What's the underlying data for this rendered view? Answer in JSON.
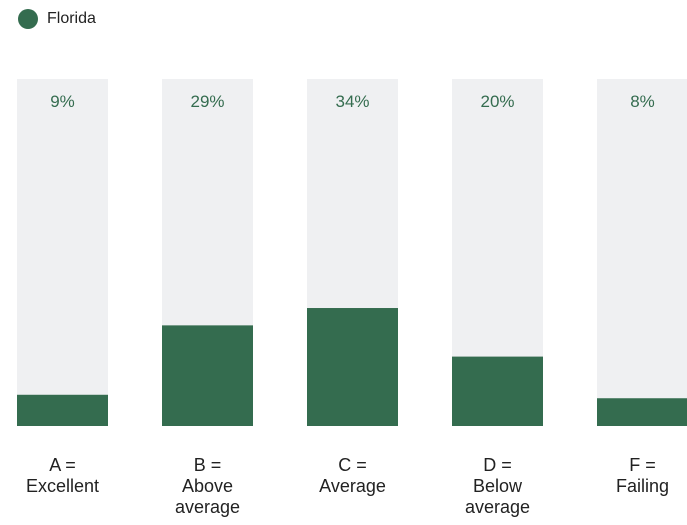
{
  "chart_data": {
    "type": "bar",
    "legend": {
      "position": "top-left",
      "entries": [
        {
          "name": "Florida",
          "color": "#346c4f"
        }
      ]
    },
    "categories": [
      [
        "A =",
        "Excellent"
      ],
      [
        "B =",
        "Above",
        "average"
      ],
      [
        "C =",
        "Average"
      ],
      [
        "D =",
        "Below",
        "average"
      ],
      [
        "F =",
        "Failing"
      ]
    ],
    "series": [
      {
        "name": "Florida",
        "values": [
          9,
          29,
          34,
          20,
          8
        ],
        "data_labels": [
          "9%",
          "29%",
          "34%",
          "20%",
          "8%"
        ],
        "color": "#346c4f"
      }
    ],
    "ylim": [
      0,
      100
    ],
    "grid": false,
    "track_color": "#eff0f2",
    "label_color": "#346c4f",
    "category_color": "#222222"
  }
}
